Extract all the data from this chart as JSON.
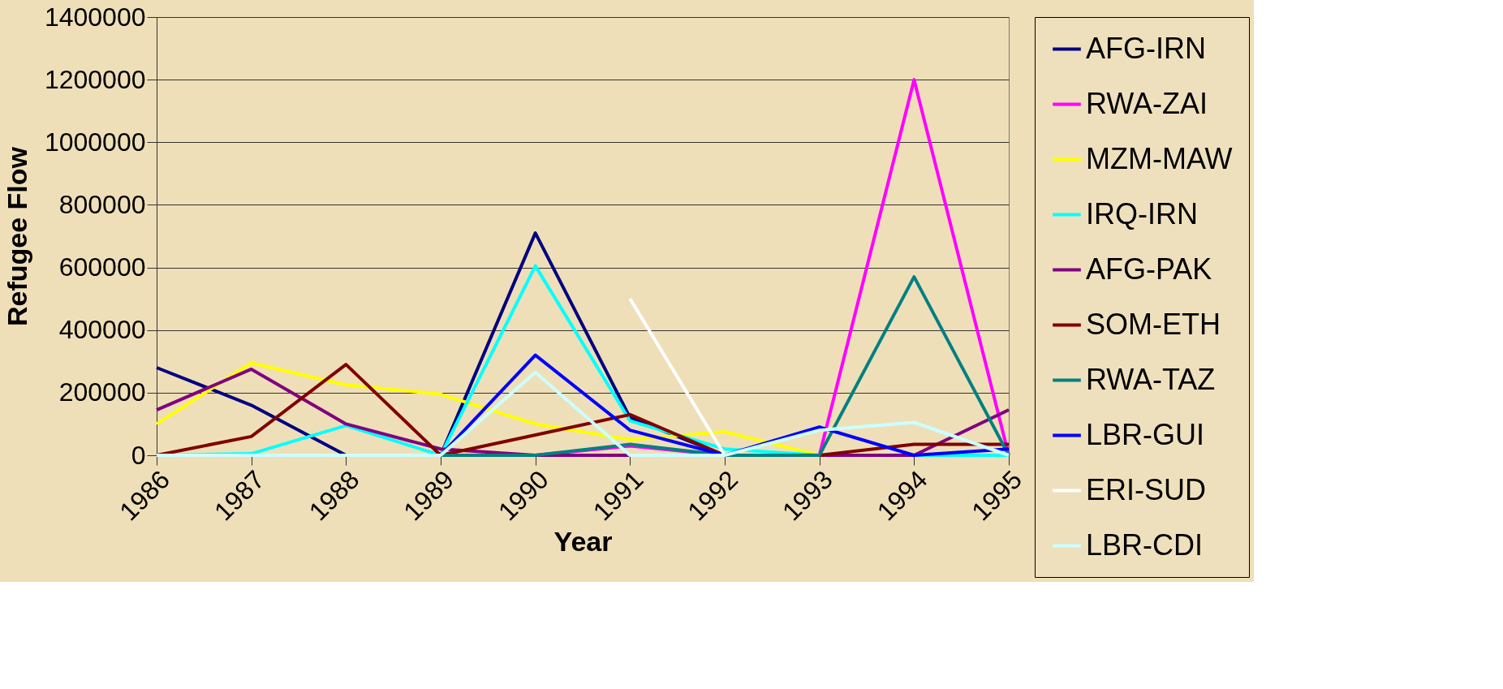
{
  "chart_data": {
    "type": "line",
    "xlabel": "Year",
    "ylabel": "Refugee Flow",
    "categories": [
      "1986",
      "1987",
      "1988",
      "1989",
      "1990",
      "1991",
      "1992",
      "1993",
      "1994",
      "1995"
    ],
    "ylim": [
      0,
      1400000
    ],
    "yticks": [
      0,
      200000,
      400000,
      600000,
      800000,
      1000000,
      1200000,
      1400000
    ],
    "grid": "y",
    "legend": "right",
    "marker": "none",
    "line_style": "solid",
    "series": [
      {
        "name": "AFG-IRN",
        "color": "#000080",
        "values": [
          280000,
          160000,
          0,
          0,
          710000,
          120000,
          0,
          0,
          0,
          0
        ]
      },
      {
        "name": "RWA-ZAI",
        "color": "#ff00ff",
        "values": [
          null,
          null,
          null,
          0,
          0,
          30000,
          0,
          0,
          1200000,
          0
        ]
      },
      {
        "name": "MZM-MAW",
        "color": "#ffff00",
        "values": [
          100000,
          295000,
          225000,
          195000,
          100000,
          50000,
          75000,
          0,
          0,
          0
        ]
      },
      {
        "name": "IRQ-IRN",
        "color": "#00ffff",
        "values": [
          0,
          5000,
          95000,
          0,
          605000,
          110000,
          20000,
          0,
          0,
          0
        ]
      },
      {
        "name": "AFG-PAK",
        "color": "#800080",
        "values": [
          145000,
          275000,
          100000,
          20000,
          0,
          0,
          0,
          0,
          0,
          145000
        ]
      },
      {
        "name": "SOM-ETH",
        "color": "#800000",
        "values": [
          0,
          60000,
          290000,
          0,
          65000,
          130000,
          0,
          0,
          35000,
          35000
        ]
      },
      {
        "name": "RWA-TAZ",
        "color": "#008080",
        "values": [
          null,
          null,
          0,
          0,
          0,
          35000,
          0,
          0,
          570000,
          0
        ]
      },
      {
        "name": "LBR-GUI",
        "color": "#0000ff",
        "values": [
          null,
          null,
          0,
          0,
          320000,
          80000,
          0,
          90000,
          0,
          20000
        ]
      },
      {
        "name": "ERI-SUD",
        "color": "#ffffff",
        "values": [
          null,
          null,
          null,
          null,
          null,
          500000,
          0,
          null,
          null,
          null
        ]
      },
      {
        "name": "LBR-CDI",
        "color": "#ccffff",
        "values": [
          0,
          0,
          0,
          0,
          265000,
          0,
          0,
          80000,
          105000,
          0
        ]
      }
    ]
  }
}
